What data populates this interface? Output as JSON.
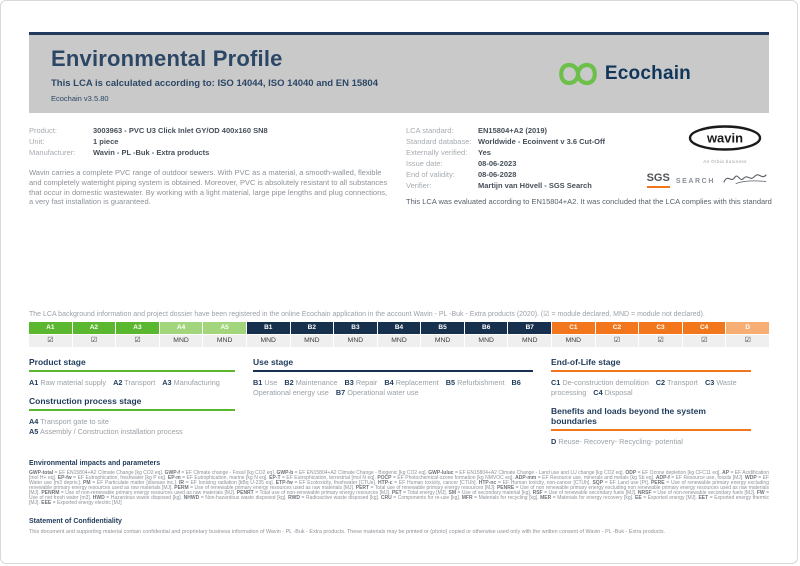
{
  "colors": {
    "brand_green": "#6cc04a",
    "brand_navy": "#12365a",
    "header_bg": "#c9c9c9",
    "table_green": "#5bb72f",
    "table_green_light": "#a3d67c",
    "table_navy": "#17304e",
    "table_orange": "#f2761b",
    "table_orange_light": "#f6ae74",
    "sgs_orange": "#f2761b"
  },
  "header": {
    "title": "Environmental Profile",
    "subtitle": "This LCA is calculated according to: ISO 14044, ISO 14040 and EN 15804",
    "version": "Ecochain v3.5.80",
    "logo_text": "Ecochain"
  },
  "product_info": {
    "rows": [
      {
        "label": "Product:",
        "value": "3003963 - PVC U3 Click Inlet GY/OD 400x160 SN8"
      },
      {
        "label": "Unit:",
        "value": "1 piece"
      },
      {
        "label": "Manufacturer:",
        "value": "Wavin - PL -Buk - Extra products"
      }
    ],
    "description": "Wavin carries a complete PVC range of outdoor sewers. With PVC as a material, a smooth-walled, flexible and completely watertight piping system is obtained. Moreover, PVC is absolutely resistant to all substances that occur in domestic wastewater. By working with a light material, large pipe lengths and plug connections, a very fast installation is guaranteed."
  },
  "lca_info": {
    "rows": [
      {
        "label": "LCA standard:",
        "value": "EN15804+A2 (2019)"
      },
      {
        "label": "Standard database:",
        "value": "Worldwide - Ecoinvent v 3.6 Cut-Off"
      },
      {
        "label": "Externally verified:",
        "value": "Yes"
      },
      {
        "label": "Issue date:",
        "value": "08-06-2023"
      },
      {
        "label": "End of validity:",
        "value": "08-06-2028"
      },
      {
        "label": "Verifier:",
        "value": "Martijn van Hövell - SGS Search"
      }
    ],
    "evaluation_note": "This LCA was evaluated according to EN15804+A2. It was concluded that the LCA complies with this standard"
  },
  "logos": {
    "wavin": "wavin",
    "wavin_sub": "An Orbia business",
    "sgs": "SGS",
    "search": "SEARCH"
  },
  "registration_note": "The LCA background information and project dossier have been registered in the online Ecochain application in the account Wavin - PL -Buk - Extra products (2020). (☑ = module declared, MND = module not declared).",
  "modules_table": {
    "columns": [
      {
        "code": "A1",
        "status": "☑",
        "group": "green"
      },
      {
        "code": "A2",
        "status": "☑",
        "group": "green"
      },
      {
        "code": "A3",
        "status": "☑",
        "group": "green"
      },
      {
        "code": "A4",
        "status": "MND",
        "group": "green-light"
      },
      {
        "code": "A5",
        "status": "MND",
        "group": "green-light"
      },
      {
        "code": "B1",
        "status": "MND",
        "group": "navy"
      },
      {
        "code": "B2",
        "status": "MND",
        "group": "navy"
      },
      {
        "code": "B3",
        "status": "MND",
        "group": "navy"
      },
      {
        "code": "B4",
        "status": "MND",
        "group": "navy"
      },
      {
        "code": "B5",
        "status": "MND",
        "group": "navy"
      },
      {
        "code": "B6",
        "status": "MND",
        "group": "navy"
      },
      {
        "code": "B7",
        "status": "MND",
        "group": "navy"
      },
      {
        "code": "C1",
        "status": "MND",
        "group": "orange"
      },
      {
        "code": "C2",
        "status": "☑",
        "group": "orange"
      },
      {
        "code": "C3",
        "status": "☑",
        "group": "orange"
      },
      {
        "code": "C4",
        "status": "☑",
        "group": "orange"
      },
      {
        "code": "D",
        "status": "☑",
        "group": "orange-light"
      }
    ]
  },
  "stages": {
    "product": {
      "title": "Product stage",
      "items": [
        {
          "code": "A1",
          "label": "Raw material supply"
        },
        {
          "code": "A2",
          "label": "Transport"
        },
        {
          "code": "A3",
          "label": "Manufacturing"
        }
      ]
    },
    "construction": {
      "title": "Construction process stage",
      "items": [
        {
          "code": "A4",
          "label": "Transport gate to site"
        },
        {
          "code": "A5",
          "label": "Assembly / Construction installation process"
        }
      ]
    },
    "use": {
      "title": "Use stage",
      "items": [
        {
          "code": "B1",
          "label": "Use"
        },
        {
          "code": "B2",
          "label": "Maintenance"
        },
        {
          "code": "B3",
          "label": "Repair"
        },
        {
          "code": "B4",
          "label": "Replacement"
        },
        {
          "code": "B5",
          "label": "Refurbishment"
        },
        {
          "code": "B6",
          "label": "Operational energy use"
        },
        {
          "code": "B7",
          "label": "Operational water use"
        }
      ]
    },
    "end_of_life": {
      "title": "End-of-Life stage",
      "items": [
        {
          "code": "C1",
          "label": "De-construction demolition"
        },
        {
          "code": "C2",
          "label": "Transport"
        },
        {
          "code": "C3",
          "label": "Waste processing"
        },
        {
          "code": "C4",
          "label": "Disposal"
        }
      ]
    },
    "benefits": {
      "title": "Benefits and loads beyond the system boundaries",
      "items": [
        {
          "code": "D",
          "label": "Reuse- Recovery- Recycling- potential"
        }
      ]
    }
  },
  "impacts": {
    "heading": "Environmental impacts and parameters",
    "body": "GWP-total = EF EN15804+A2 Climate Change [kg CO2 eq]. GWP-f = EF Climate change - Fossil [kg CO2 eq]. GWP-b = EF EN15804+A2 Climate Change - Biogenic [kg CO2 eq]. GWP-luluc = EF EN15804+A2 Climate Change - Land use and LU change [kg CO2 eq]. ODP = EF Ozone depletion [kg CFC11 eq]. AP = EF Acidification [mol H+ eq]. EP-fw = EF Eutrophication, freshwater [kg P eq]. EP-m = EF Eutrophication, marine [kg N eq]. EP-T = EF Eutrophication, terrestrial [mol N eq]. POCP = EF Photochemical ozone formation [kg NMVOC eq]. ADP-mm = EF Resource use, minerals and metals [kg Sb eq]. ADP-f = EF Resource use, fossils [MJ]. WDP = EF Water use [m3 depriv.]. PM = EF Particulate matter [disease inc.]. IR = EF Ionising radiation [kBq U-235 eq]. ETP-fw = EF Ecotoxicity, freshwater [CTUe]. HTP-c = EF Human toxicity, cancer [CTUh]. HTP-nc = EF Human toxicity, non-cancer [CTUh]. SQP = EF Land use [Pt]. PERE = Use of renewable primary energy excluding renewable primary energy resources used as raw materials [MJ]. PERM = Use of renewable primary energy resources used as raw materials [MJ]. PERT = Total use of renewable primary energy resources [MJ]. PENRE = Use of non renewable primary energy excluding non renewable primary energy resources used as raw materials [MJ]. PENRM = Use of non-renewable primary energy resources used as raw materials [MJ]. PENRT = Total use of non-renewable primary energy resources [MJ]. PET = Total energy [MJ]. SM = Use of secondary material [kg]. RSF = Use of renewable secondary fuels [MJ]. NRSF = Use of non-renewable secondary fuels [MJ]. FW = Use of net fresh water [m3]. HWD = Hazardous waste disposed [kg]. NHWD = Non-hazardous waste disposed [kg]. RWD = Radioactive waste disposed [kg]. CRU = Components for re-use [kg]. MFR = Materials for recycling [kg]. MER = Materials for energy recovery [kg]. EE = Exported energy [MJ]. EET = Exported energy thermic [MJ]. EEE = Exported energy electric [MJ]"
  },
  "confidentiality": {
    "heading": "Statement of Confidentiality",
    "body": "This document and supporting material contain confidential and proprietary business information of Wavin - PL -Buk - Extra products. These materials may be printed or (photo) copied or otherwise used only with the written consent of Wavin - PL -Buk - Extra products."
  }
}
